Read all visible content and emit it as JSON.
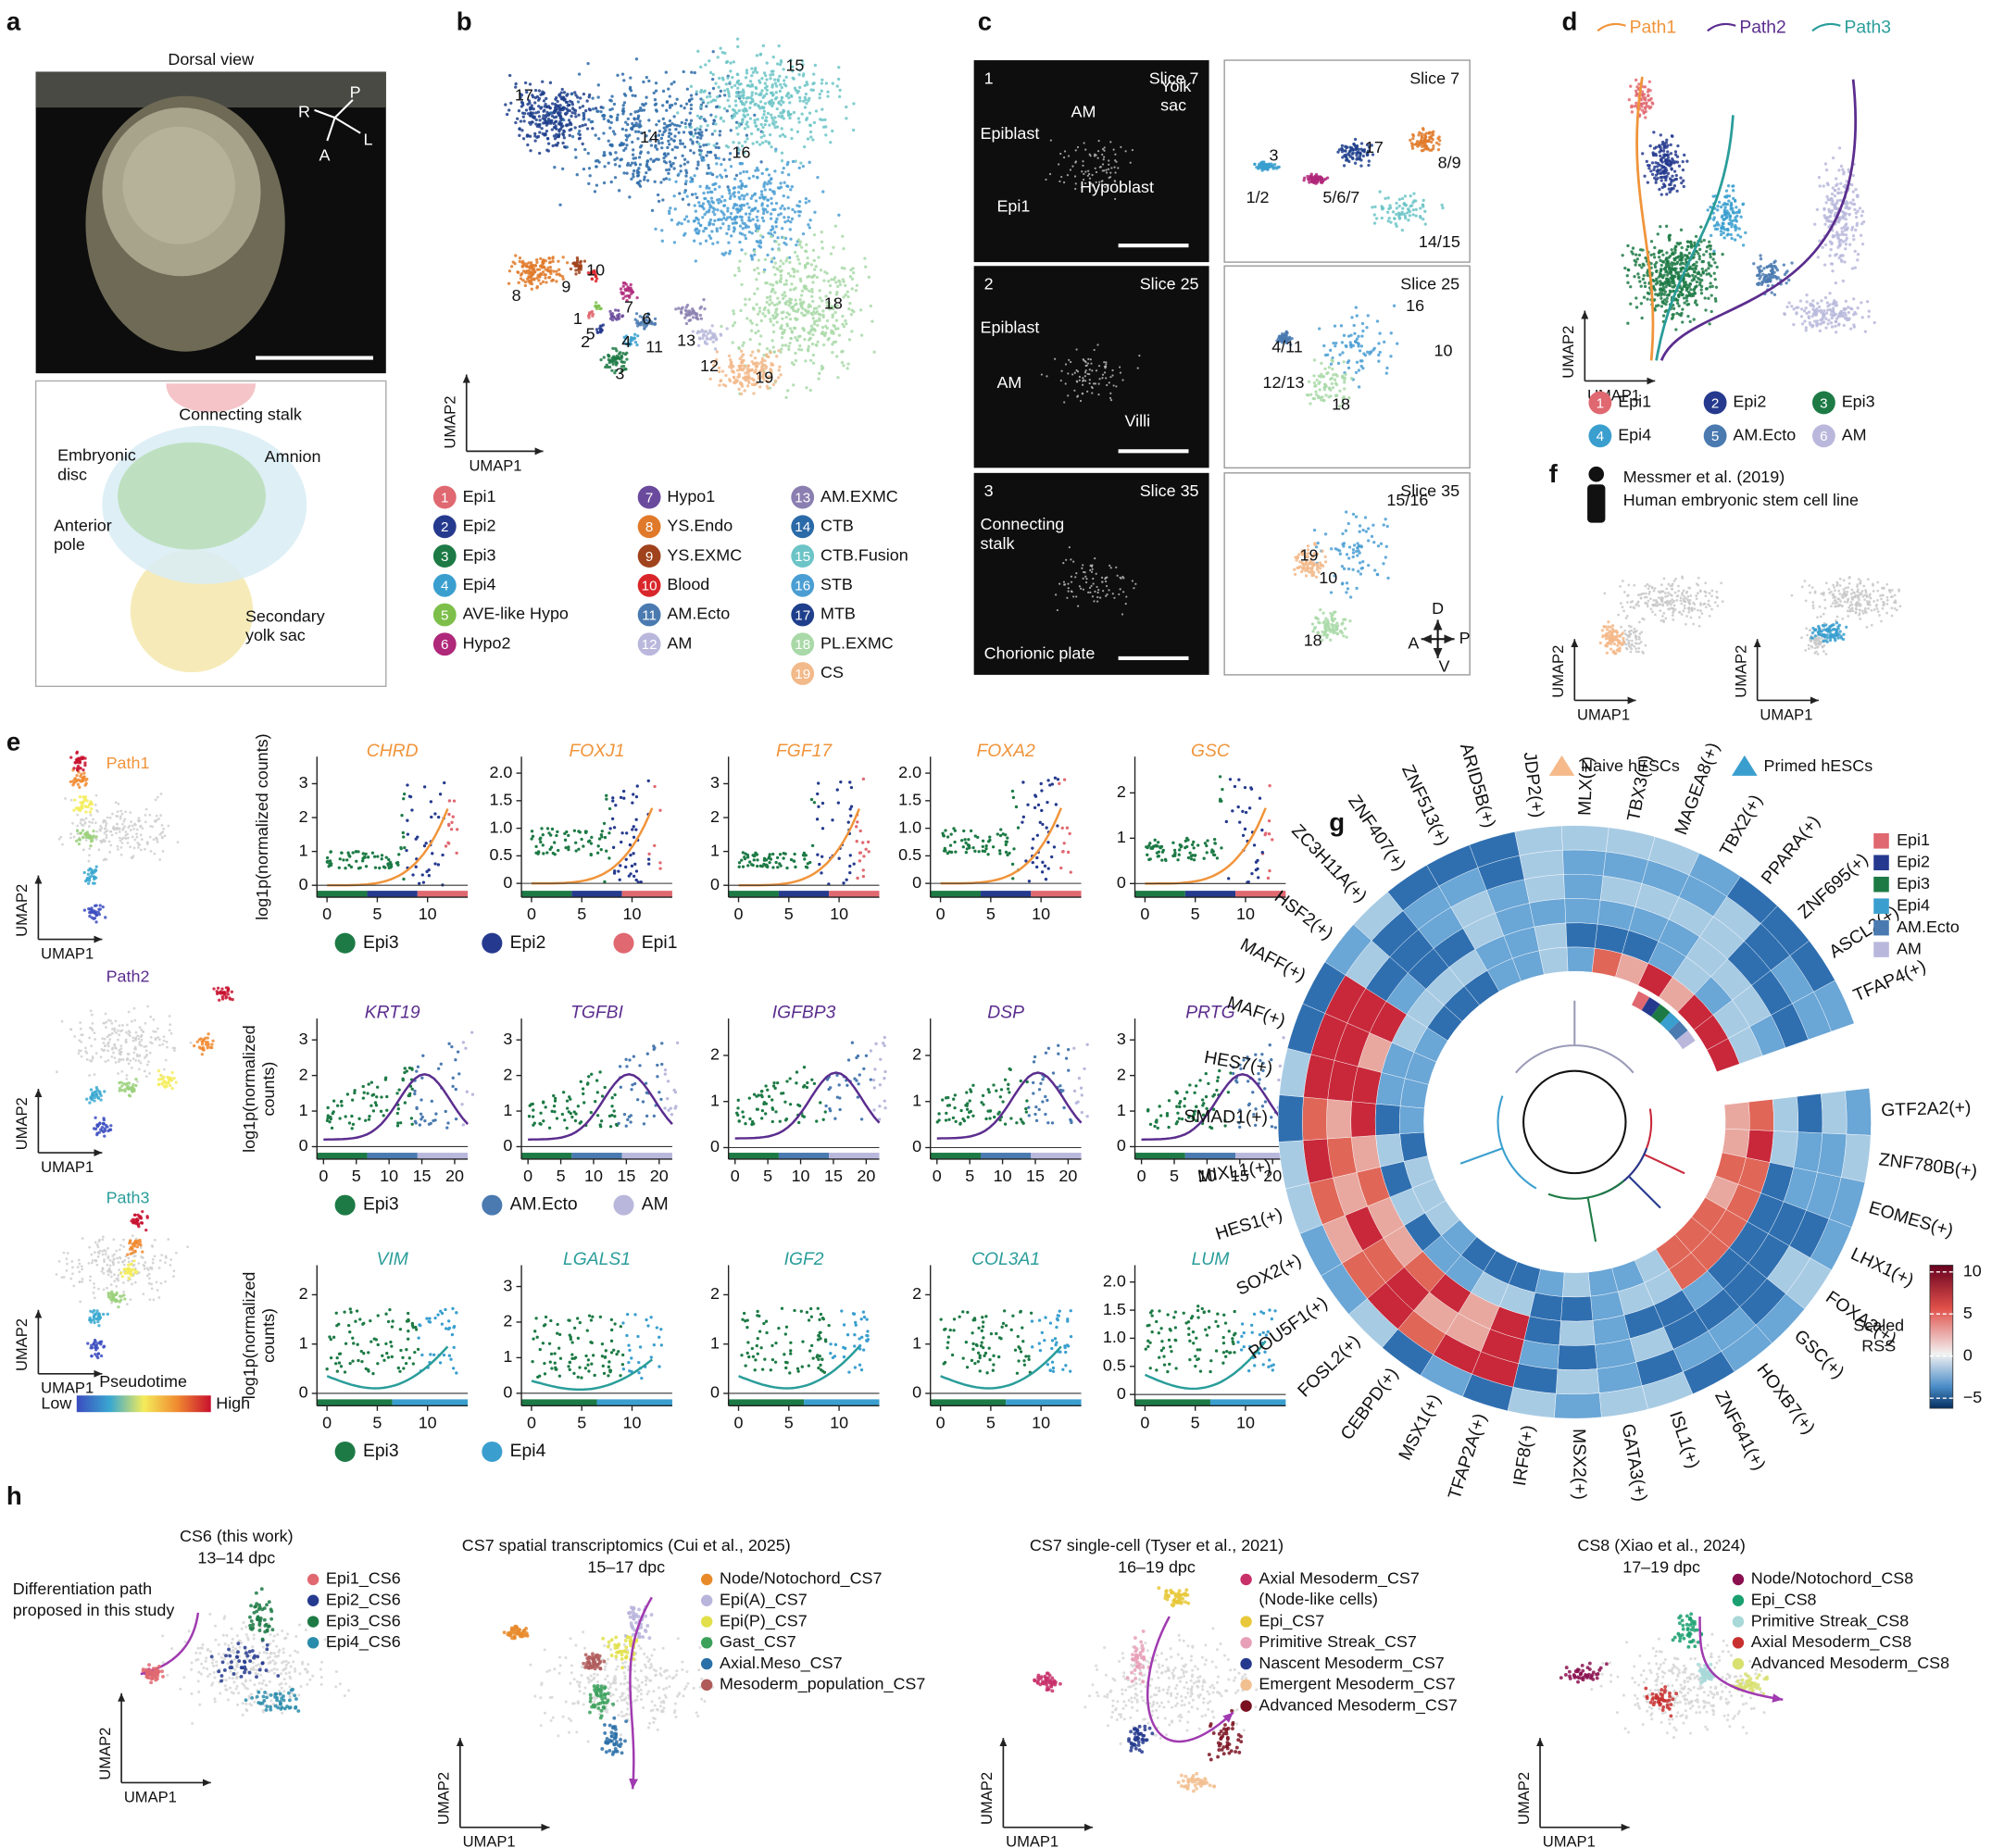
{
  "panels": {
    "a": {
      "label": "a",
      "title": "Dorsal view",
      "compass": [
        "P",
        "R",
        "L",
        "A"
      ],
      "annotations": [
        [
          "Connecting stalk"
        ],
        [
          "Embryonic",
          "disc"
        ],
        [
          "Amnion"
        ],
        [
          "Anterior",
          "pole"
        ],
        [
          "Secondary",
          "yolk sac"
        ]
      ]
    },
    "b": {
      "label": "b",
      "x_axis": "UMAP1",
      "y_axis": "UMAP2",
      "cluster_labels": [
        "17",
        "15",
        "14",
        "16",
        "8",
        "9",
        "10",
        "7",
        "6",
        "5",
        "1",
        "2",
        "3",
        "4",
        "11",
        "13",
        "12",
        "18",
        "19"
      ],
      "legend": [
        {
          "num": "1",
          "name": "Epi1",
          "color": "#e06870"
        },
        {
          "num": "2",
          "name": "Epi2",
          "color": "#253a8e"
        },
        {
          "num": "3",
          "name": "Epi3",
          "color": "#1d7a45"
        },
        {
          "num": "4",
          "name": "Epi4",
          "color": "#3a9fcf"
        },
        {
          "num": "5",
          "name": "AVE-like Hypo",
          "color": "#7dbf4a"
        },
        {
          "num": "6",
          "name": "Hypo2",
          "color": "#b0287a"
        },
        {
          "num": "7",
          "name": "Hypo1",
          "color": "#6a4a9c"
        },
        {
          "num": "8",
          "name": "YS.Endo",
          "color": "#e07a2a"
        },
        {
          "num": "9",
          "name": "YS.EXMC",
          "color": "#a0421c"
        },
        {
          "num": "10",
          "name": "Blood",
          "color": "#d9262a"
        },
        {
          "num": "11",
          "name": "AM.Ecto",
          "color": "#4a7ab0"
        },
        {
          "num": "12",
          "name": "AM",
          "color": "#b9b8dc"
        },
        {
          "num": "13",
          "name": "AM.EXMC",
          "color": "#8a7fb0"
        },
        {
          "num": "14",
          "name": "CTB",
          "color": "#2b6aa8"
        },
        {
          "num": "15",
          "name": "CTB.Fusion",
          "color": "#6cc4c7"
        },
        {
          "num": "16",
          "name": "STB",
          "color": "#4a9ed3"
        },
        {
          "num": "17",
          "name": "MTB",
          "color": "#1f3f8c"
        },
        {
          "num": "18",
          "name": "PL.EXMC",
          "color": "#a9d9a8"
        },
        {
          "num": "19",
          "name": "CS",
          "color": "#f2b98a"
        }
      ]
    },
    "c": {
      "label": "c",
      "rows": [
        {
          "num": "1",
          "slice": "Slice 7",
          "tissue_labels": [
            [
              "Epiblast"
            ],
            [
              "AM"
            ],
            [
              "Yolk",
              "sac"
            ],
            [
              "Hypoblast"
            ],
            [
              "Epi1"
            ]
          ],
          "cluster_labels": [
            "3",
            "17",
            "8/9",
            "1/2",
            "5/6/7",
            "14/15"
          ]
        },
        {
          "num": "2",
          "slice": "Slice 25",
          "tissue_labels": [
            [
              "Epiblast"
            ],
            [
              "AM"
            ],
            [
              "Villi"
            ]
          ],
          "cluster_labels": [
            "16",
            "4/11",
            "10",
            "12/13",
            "18"
          ]
        },
        {
          "num": "3",
          "slice": "Slice 35",
          "tissue_labels": [
            [
              "Connecting",
              "stalk"
            ],
            [
              "Chorionic plate"
            ]
          ],
          "cluster_labels": [
            "15/16",
            "19",
            "10",
            "18"
          ],
          "compass": [
            "D",
            "A",
            "P",
            "V"
          ]
        }
      ]
    },
    "d": {
      "label": "d",
      "x_axis": "UMAP1",
      "y_axis": "UMAP2",
      "paths": [
        {
          "name": "Path1",
          "color": "#f0943a"
        },
        {
          "name": "Path2",
          "color": "#5b2d8e"
        },
        {
          "name": "Path3",
          "color": "#2a9d9a"
        }
      ],
      "legend": [
        {
          "num": "1",
          "name": "Epi1",
          "color": "#e06870"
        },
        {
          "num": "2",
          "name": "Epi2",
          "color": "#253a8e"
        },
        {
          "num": "3",
          "name": "Epi3",
          "color": "#1d7a45"
        },
        {
          "num": "4",
          "name": "Epi4",
          "color": "#3a9fcf"
        },
        {
          "num": "5",
          "name": "AM.Ecto",
          "color": "#4a7ab0"
        },
        {
          "num": "6",
          "name": "AM",
          "color": "#b9b8dc"
        }
      ]
    },
    "e": {
      "label": "e",
      "x_axis": "UMAP1",
      "y_axis": "UMAP2",
      "path_umaps": [
        {
          "name": "Path1",
          "color": "#f0943a"
        },
        {
          "name": "Path2",
          "color": "#5b2d8e"
        },
        {
          "name": "Path3",
          "color": "#2a9d9a"
        }
      ],
      "pseudotime": {
        "title": "Pseudotime",
        "low": "Low",
        "high": "High"
      },
      "rows": [
        {
          "color": "#f0943a",
          "y_label": [
            "log1p(normalized counts)"
          ],
          "xlim": [
            -1,
            14
          ],
          "xticks": [
            0,
            5,
            10
          ],
          "genes": [
            {
              "name": "CHRD",
              "ylim": [
                -0.35,
                3.8
              ],
              "yticks": [
                0,
                1,
                2,
                3
              ]
            },
            {
              "name": "FOXJ1",
              "ylim": [
                -0.25,
                2.3
              ],
              "yticks": [
                0,
                0.5,
                {
                  "value": 1,
                  "label": "1.0"
                },
                1.5,
                {
                  "value": 2,
                  "label": "2.0"
                }
              ]
            },
            {
              "name": "FGF17",
              "ylim": [
                -0.35,
                3.8
              ],
              "yticks": [
                0,
                1,
                2,
                3
              ]
            },
            {
              "name": "FOXA2",
              "ylim": [
                -0.25,
                2.3
              ],
              "yticks": [
                0,
                0.5,
                {
                  "value": 1,
                  "label": "1.0"
                },
                1.5,
                {
                  "value": 2,
                  "label": "2.0"
                }
              ]
            },
            {
              "name": "GSC",
              "ylim": [
                -0.3,
                2.8
              ],
              "yticks": [
                0,
                1,
                2
              ]
            }
          ],
          "legend": [
            {
              "name": "Epi3",
              "color": "#1d7a45"
            },
            {
              "name": "Epi2",
              "color": "#253a8e"
            },
            {
              "name": "Epi1",
              "color": "#e06870"
            }
          ]
        },
        {
          "color": "#5b2d8e",
          "y_label": [
            "log1p(normalized",
            "counts)"
          ],
          "xlim": [
            -1,
            22
          ],
          "xticks": [
            0,
            5,
            10,
            15,
            20
          ],
          "genes": [
            {
              "name": "KRT19",
              "ylim": [
                -0.35,
                3.6
              ],
              "yticks": [
                0,
                1,
                2,
                3
              ]
            },
            {
              "name": "TGFBI",
              "ylim": [
                -0.35,
                3.6
              ],
              "yticks": [
                0,
                1,
                2,
                3
              ]
            },
            {
              "name": "IGFBP3",
              "ylim": [
                -0.25,
                2.8
              ],
              "yticks": [
                0,
                1,
                2
              ]
            },
            {
              "name": "DSP",
              "ylim": [
                -0.25,
                2.8
              ],
              "yticks": [
                0,
                1,
                2
              ]
            },
            {
              "name": "PRTG",
              "ylim": [
                -0.35,
                3.6
              ],
              "yticks": [
                0,
                1,
                2,
                3
              ]
            }
          ],
          "legend": [
            {
              "name": "Epi3",
              "color": "#1d7a45"
            },
            {
              "name": "AM.Ecto",
              "color": "#4a7ab0"
            },
            {
              "name": "AM",
              "color": "#b9b8dc"
            }
          ]
        },
        {
          "color": "#2a9d9a",
          "y_label": [
            "log1p(normalized",
            "counts)"
          ],
          "xlim": [
            -1,
            14
          ],
          "xticks": [
            0,
            5,
            10
          ],
          "genes": [
            {
              "name": "VIM",
              "ylim": [
                -0.25,
                2.6
              ],
              "yticks": [
                0,
                1,
                2
              ]
            },
            {
              "name": "LGALS1",
              "ylim": [
                -0.35,
                3.6
              ],
              "yticks": [
                0,
                1,
                2,
                3
              ]
            },
            {
              "name": "IGF2",
              "ylim": [
                -0.25,
                2.6
              ],
              "yticks": [
                0,
                1,
                2
              ]
            },
            {
              "name": "COL3A1",
              "ylim": [
                -0.25,
                2.6
              ],
              "yticks": [
                0,
                1,
                2
              ]
            },
            {
              "name": "LUM",
              "ylim": [
                -0.2,
                2.3
              ],
              "yticks": [
                0,
                0.5,
                {
                  "value": 1,
                  "label": "1.0"
                },
                1.5,
                {
                  "value": 2,
                  "label": "2.0"
                }
              ]
            }
          ],
          "legend": [
            {
              "name": "Epi3",
              "color": "#1d7a45"
            },
            {
              "name": "Epi4",
              "color": "#3a9fcf"
            }
          ]
        }
      ]
    },
    "f": {
      "label": "f",
      "source": "Messmer et al. (2019)",
      "description": "Human embryonic stem cell line",
      "x_axis": "UMAP1",
      "y_axis": "UMAP2",
      "plots": [
        {
          "name": "Naive hESCs",
          "color": "#f5b98a"
        },
        {
          "name": "Primed hESCs",
          "color": "#3a9fcf"
        }
      ]
    },
    "g": {
      "label": "g",
      "tfs": [
        "GTF2A2(+)",
        "ZNF780B(+)",
        "EOMES(+)",
        "LHX1(+)",
        "FOXA2(+)",
        "GSC(+)",
        "HOXB7(+)",
        "ZNF641(+)",
        "ISL1(+)",
        "GATA3(+)",
        "MSX2(+)",
        "IRF8(+)",
        "TFAP2A(+)",
        "MSX1(+)",
        "CEBPD(+)",
        "FOSL2(+)",
        "POU5F1(+)",
        "SOX2(+)",
        "HES1(+)",
        "MIXL1(+)",
        "SMAD1(+)",
        "HES7(+)",
        "MAF(+)",
        "MAFF(+)",
        "HSF2(+)",
        "ZC3H11A(+)",
        "ZNF407(+)",
        "ZNF513(+)",
        "ARID5B(+)",
        "JDP2(+)",
        "MLX(+)",
        "TBX3(+)",
        "MAGEA8(+)",
        "TBX2(+)",
        "PPARA(+)",
        "ZNF695(+)",
        "ASCL2(+)",
        "TFAP4(+)"
      ],
      "legend": [
        {
          "name": "Epi1",
          "color": "#e06870"
        },
        {
          "name": "Epi2",
          "color": "#253a8e"
        },
        {
          "name": "Epi3",
          "color": "#1d7a45"
        },
        {
          "name": "Epi4",
          "color": "#3a9fcf"
        },
        {
          "name": "AM.Ecto",
          "color": "#4a7ab0"
        },
        {
          "name": "AM",
          "color": "#b9b8dc"
        }
      ],
      "colorbar": {
        "title": [
          "Scaled",
          "RSS"
        ],
        "ylim": [
          -6.2,
          10.8
        ],
        "ticks": [
          10,
          5,
          0,
          {
            "value": -5,
            "label": "−5"
          }
        ]
      }
    },
    "h": {
      "label": "h",
      "x_axis": "UMAP1",
      "y_axis": "UMAP2",
      "note": [
        "Differentiation path",
        "proposed in this study"
      ],
      "plots": [
        {
          "title": "CS6 (this work)",
          "stage": "13–14 dpc",
          "legend": [
            {
              "lines": [
                "Epi1_CS6"
              ],
              "color": "#e06870"
            },
            {
              "lines": [
                "Epi2_CS6"
              ],
              "color": "#253a8e"
            },
            {
              "lines": [
                "Epi3_CS6"
              ],
              "color": "#1d7a45"
            },
            {
              "lines": [
                "Epi4_CS6"
              ],
              "color": "#2a8cab"
            }
          ]
        },
        {
          "title": "CS7 spatial transcriptomics (Cui et al., 2025)",
          "stage": "15–17 dpc",
          "legend": [
            {
              "lines": [
                "Node/Notochord_CS7"
              ],
              "color": "#e88a2a"
            },
            {
              "lines": [
                "Epi(A)_CS7"
              ],
              "color": "#b9b4dc"
            },
            {
              "lines": [
                "Epi(P)_CS7"
              ],
              "color": "#e2e04a"
            },
            {
              "lines": [
                "Gast_CS7"
              ],
              "color": "#3aa05a"
            },
            {
              "lines": [
                "Axial.Meso_CS7"
              ],
              "color": "#2a70a8"
            },
            {
              "lines": [
                "Mesoderm_population_CS7"
              ],
              "color": "#b05a5a"
            }
          ]
        },
        {
          "title": "CS7 single-cell (Tyser et al., 2021)",
          "stage": "16–19 dpc",
          "legend": [
            {
              "lines": [
                "Axial Mesoderm_CS7",
                "(Node-like cells)"
              ],
              "color": "#c8306a"
            },
            {
              "lines": [
                "Epi_CS7"
              ],
              "color": "#e8c83a"
            },
            {
              "lines": [
                "Primitive Streak_CS7"
              ],
              "color": "#e8a0b8"
            },
            {
              "lines": [
                "Nascent Mesoderm_CS7"
              ],
              "color": "#253a8e"
            },
            {
              "lines": [
                "Emergent Mesoderm_CS7"
              ],
              "color": "#f2c090"
            },
            {
              "lines": [
                "Advanced Mesoderm_CS7"
              ],
              "color": "#7a1020"
            }
          ]
        },
        {
          "title": "CS8 (Xiao et al., 2024)",
          "stage": "17–19 dpc",
          "legend": [
            {
              "lines": [
                "Node/Notochord_CS8"
              ],
              "color": "#8a1050"
            },
            {
              "lines": [
                "Epi_CS8"
              ],
              "color": "#1aa070"
            },
            {
              "lines": [
                "Primitive Streak_CS8"
              ],
              "color": "#a8d8d8"
            },
            {
              "lines": [
                "Axial Mesoderm_CS8"
              ],
              "color": "#c83030"
            },
            {
              "lines": [
                "Advanced Mesoderm_CS8"
              ],
              "color": "#d8e070"
            }
          ]
        }
      ]
    }
  }
}
